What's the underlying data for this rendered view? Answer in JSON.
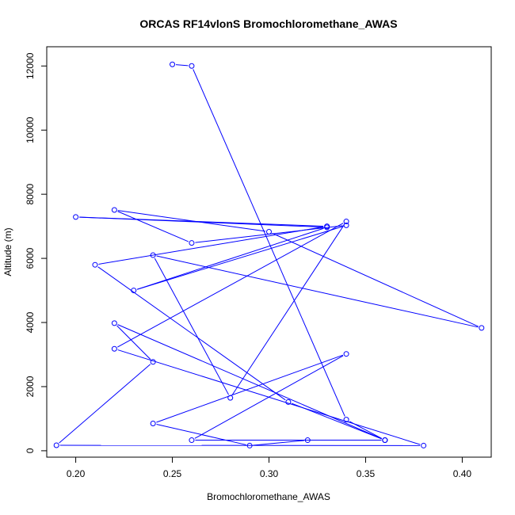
{
  "chart_data": {
    "type": "line",
    "title": "ORCAS RF14vlonS Bromochloromethane_AWAS",
    "xlabel": "Bromochloromethane_AWAS",
    "ylabel": "Altitude (m)",
    "xlim": [
      0.185,
      0.415
    ],
    "ylim": [
      -200,
      12600
    ],
    "xticks": [
      "0.20",
      "0.25",
      "0.30",
      "0.35",
      "0.40"
    ],
    "yticks": [
      "0",
      "2000",
      "4000",
      "6000",
      "8000",
      "10000",
      "12000"
    ],
    "grid": false,
    "series": [
      {
        "color": "#0000ff",
        "x": [
          0.25,
          0.26,
          0.34,
          0.36,
          0.26,
          0.34,
          0.24,
          0.29,
          0.32,
          0.36,
          0.22,
          0.24,
          0.19,
          0.38,
          0.22,
          0.34,
          0.28,
          0.24,
          0.41,
          0.3,
          0.22,
          0.26,
          0.34,
          0.23,
          0.33,
          0.2,
          0.33,
          0.21,
          0.31,
          0.36
        ],
        "y": [
          12050,
          12000,
          970,
          330,
          330,
          3020,
          850,
          160,
          330,
          330,
          3980,
          2770,
          170,
          160,
          3180,
          7150,
          1650,
          6100,
          3830,
          6830,
          7510,
          6480,
          7030,
          5000,
          6970,
          7290,
          7000,
          5800,
          1520,
          330
        ]
      }
    ]
  }
}
